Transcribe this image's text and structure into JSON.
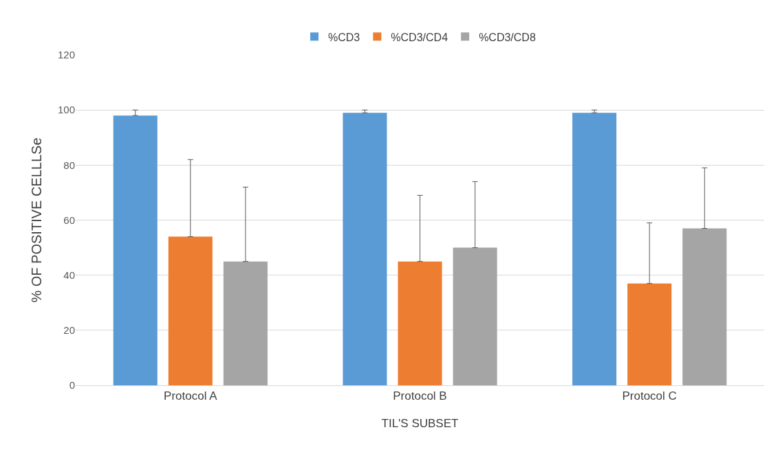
{
  "chart_data": {
    "type": "bar",
    "xlabel": "TIL'S SUBSET",
    "ylabel": "% OF POSITIVE CELLLSe",
    "categories": [
      "Protocol A",
      "Protocol B",
      "Protocol C"
    ],
    "series": [
      {
        "name": "%CD3",
        "color": "#5b9bd5",
        "values": [
          98,
          99,
          99
        ],
        "errors": [
          [
            98,
            100
          ],
          [
            99,
            100
          ],
          [
            99,
            100
          ]
        ]
      },
      {
        "name": "%CD3/CD4",
        "color": "#ed7d31",
        "values": [
          54,
          45,
          37
        ],
        "errors": [
          [
            54,
            82
          ],
          [
            45,
            69
          ],
          [
            37,
            59
          ]
        ]
      },
      {
        "name": "%CD3/CD8",
        "color": "#a5a5a5",
        "values": [
          45,
          50,
          57
        ],
        "errors": [
          [
            45,
            72
          ],
          [
            50,
            74
          ],
          [
            57,
            79
          ]
        ]
      }
    ],
    "ylim": [
      0,
      120
    ],
    "yticks": [
      0,
      20,
      40,
      60,
      80,
      100,
      120
    ],
    "grid": "y",
    "legend": "top"
  }
}
